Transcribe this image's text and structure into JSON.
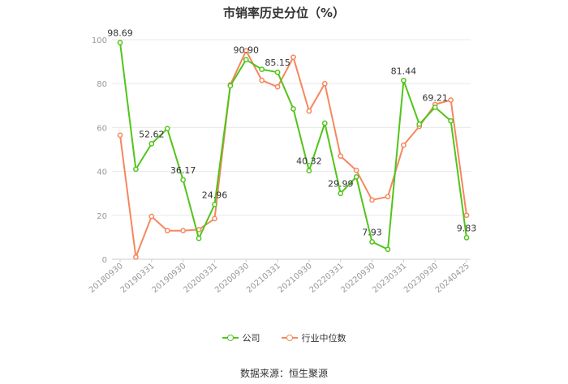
{
  "title": "市销率历史分位（%）",
  "source": "数据来源：恒生聚源",
  "colors": {
    "company": "#52c41a",
    "industry": "#f5875f",
    "grid": "#e8e8e8",
    "axis": "#cccccc"
  },
  "chart_data": {
    "type": "line",
    "title": "市销率历史分位（%）",
    "xlabel": "",
    "ylabel": "",
    "ylim": [
      0,
      100
    ],
    "yticks": [
      0,
      20,
      40,
      60,
      80,
      100
    ],
    "grid": true,
    "legend_position": "bottom",
    "x": [
      "20180930",
      "20181231",
      "20190331",
      "20190630",
      "20190930",
      "20191231",
      "20200331",
      "20200630",
      "20200930",
      "20201231",
      "20210331",
      "20210630",
      "20210930",
      "20211231",
      "20220331",
      "20220630",
      "20220930",
      "20221231",
      "20230331",
      "20230630",
      "20230930",
      "20231231",
      "20240425"
    ],
    "x_tick_labels": [
      "20180930",
      "20190331",
      "20190930",
      "20200331",
      "20200930",
      "20210331",
      "20210930",
      "20220331",
      "20220930",
      "20230331",
      "20230930",
      "20240425"
    ],
    "series": [
      {
        "name": "公司",
        "values": [
          98.69,
          41.0,
          52.62,
          59.5,
          36.17,
          9.5,
          24.96,
          79.0,
          90.9,
          86.5,
          85.15,
          68.5,
          40.32,
          62.0,
          29.99,
          37.5,
          7.93,
          4.5,
          81.44,
          61.5,
          69.21,
          63.0,
          9.83
        ],
        "labels": {
          "0": "98.69",
          "2": "52.62",
          "4": "36.17",
          "6": "24.96",
          "8": "90.90",
          "10": "85.15",
          "12": "40.32",
          "14": "29.99",
          "16": "7.93",
          "18": "81.44",
          "20": "69.21",
          "22": "9.83"
        }
      },
      {
        "name": "行业中位数",
        "values": [
          56.5,
          1.0,
          19.5,
          13.0,
          13.0,
          13.5,
          18.5,
          79.5,
          95.0,
          81.5,
          78.5,
          92.0,
          67.5,
          80.0,
          47.0,
          40.5,
          27.0,
          28.5,
          52.0,
          60.5,
          70.5,
          72.5,
          20.0
        ]
      }
    ]
  }
}
